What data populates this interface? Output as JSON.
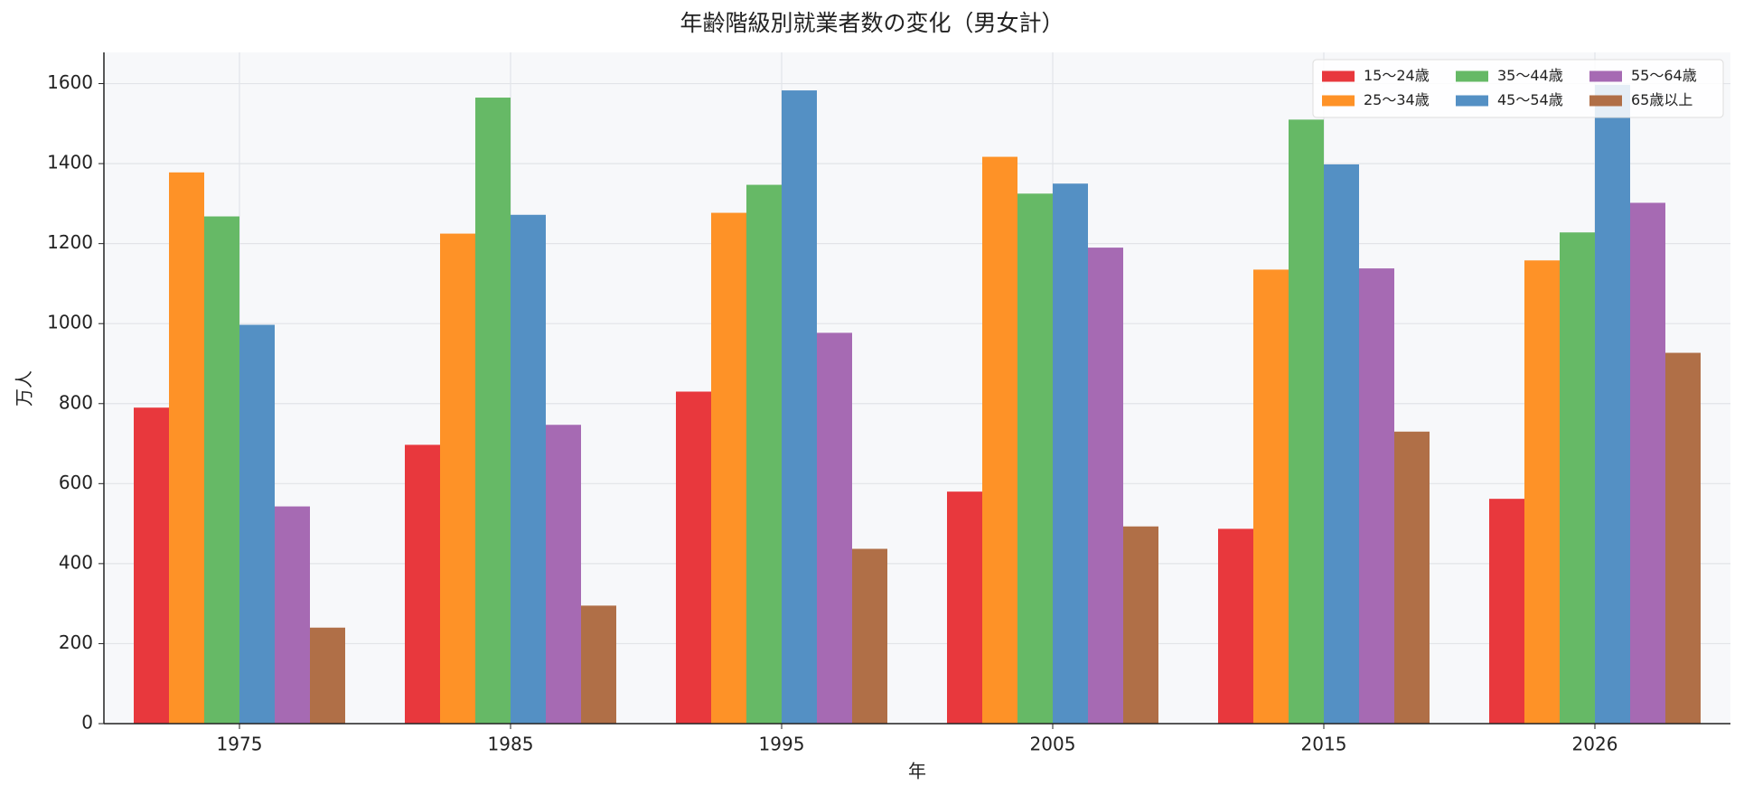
{
  "chart_data": {
    "type": "bar",
    "title": "年齢階級別就業者数の変化（男女計）",
    "xlabel": "年",
    "ylabel": "万人",
    "categories": [
      "1975",
      "1985",
      "1995",
      "2005",
      "2015",
      "2026"
    ],
    "series": [
      {
        "name": "15〜24歳",
        "color": "#e8383d",
        "values": [
          790,
          697,
          830,
          580,
          487,
          562
        ]
      },
      {
        "name": "25〜34歳",
        "color": "#fe9227",
        "values": [
          1378,
          1225,
          1277,
          1417,
          1135,
          1158
        ]
      },
      {
        "name": "35〜44歳",
        "color": "#66b966",
        "values": [
          1268,
          1565,
          1347,
          1325,
          1510,
          1228
        ]
      },
      {
        "name": "45〜54歳",
        "color": "#5490c4",
        "values": [
          997,
          1272,
          1583,
          1350,
          1398,
          1597
        ]
      },
      {
        "name": "55〜64歳",
        "color": "#a66ab3",
        "values": [
          543,
          747,
          977,
          1190,
          1138,
          1302
        ]
      },
      {
        "name": "65歳以上",
        "color": "#b06f47",
        "values": [
          240,
          295,
          437,
          493,
          730,
          927
        ]
      }
    ],
    "ylim": [
      0,
      1678
    ],
    "yticks": [
      0,
      200,
      400,
      600,
      800,
      1000,
      1200,
      1400,
      1600
    ],
    "grid": true,
    "legend": "upper right",
    "legend_columns": 3
  }
}
